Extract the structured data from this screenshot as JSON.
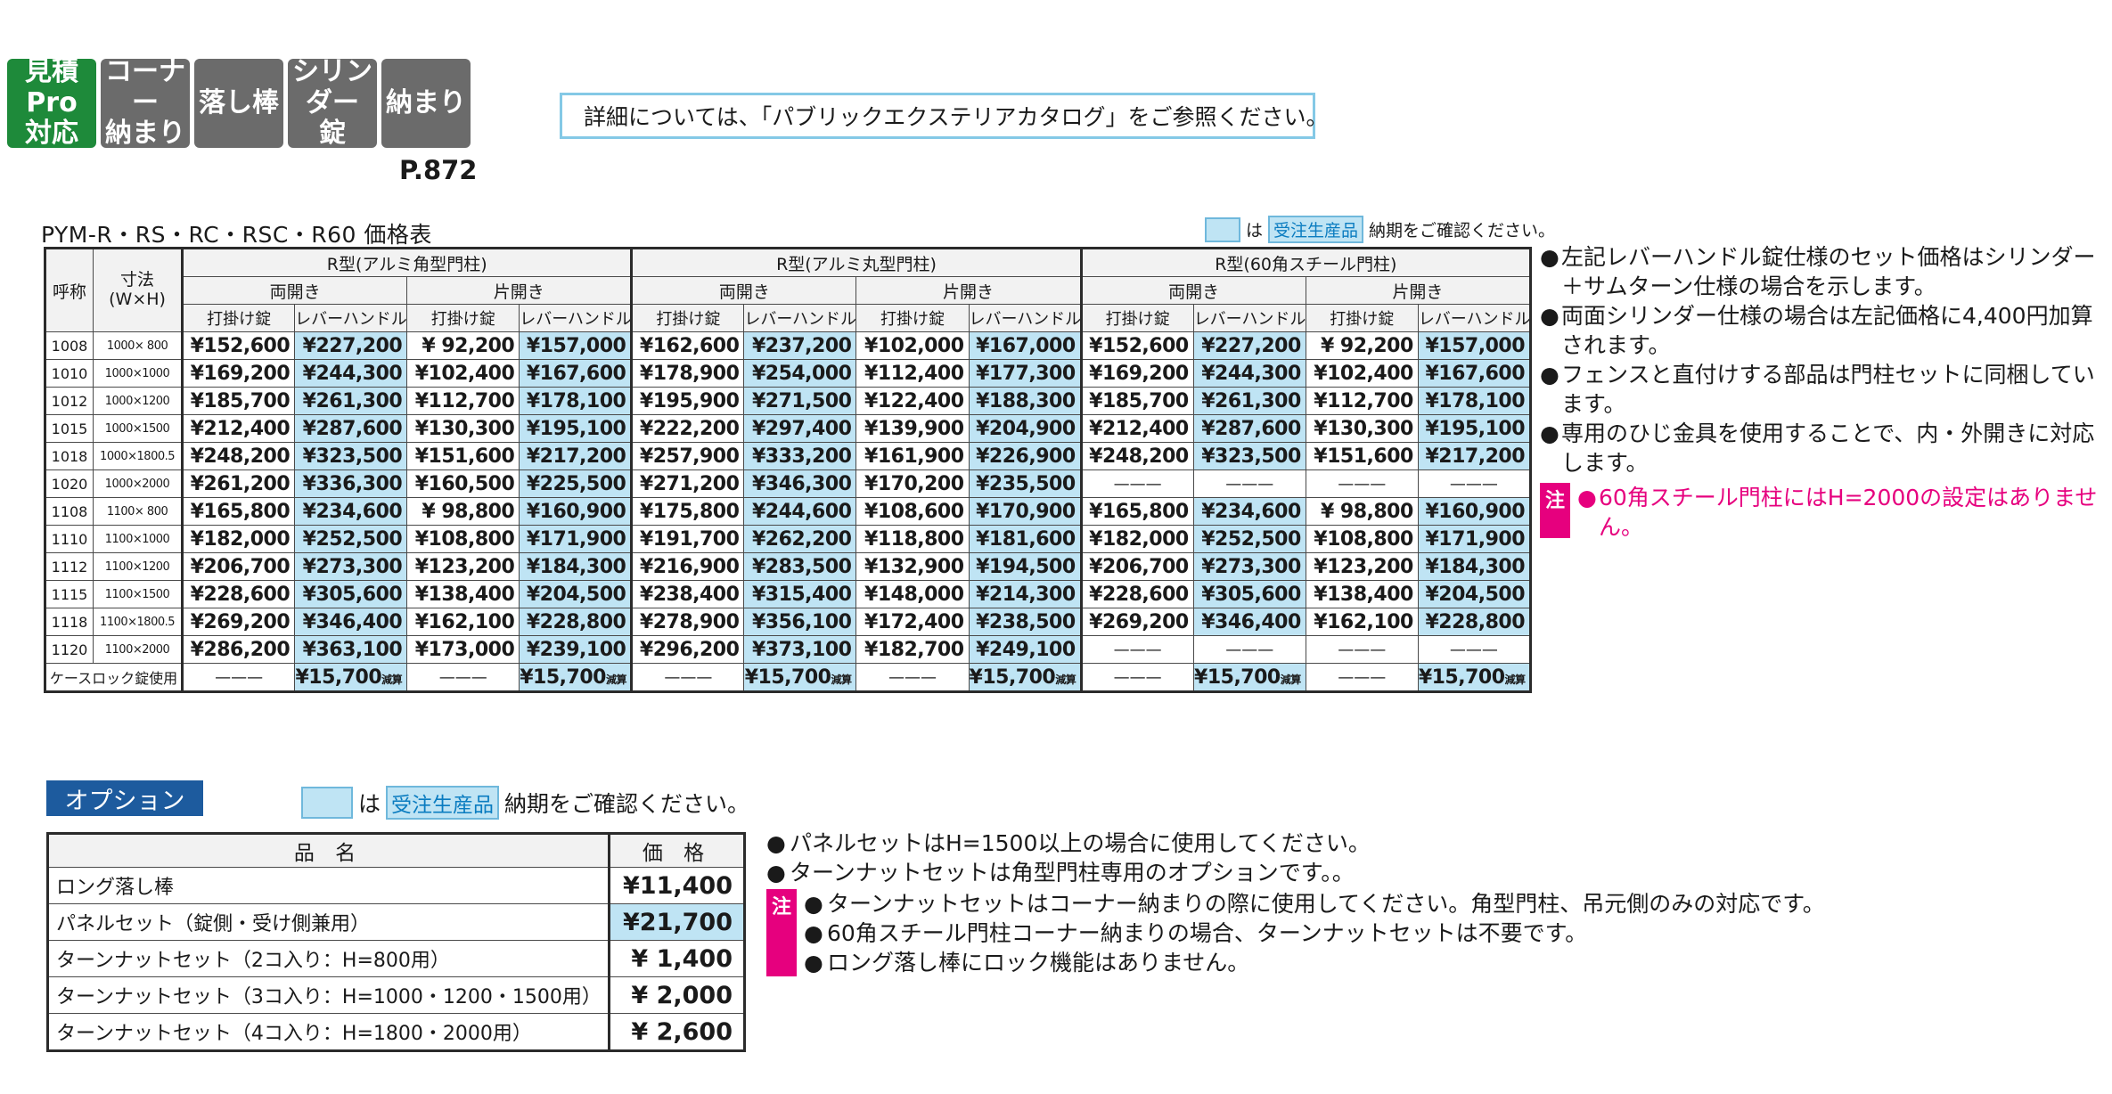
{
  "badges": [
    {
      "label": "見積Pro\n対応",
      "color": "#1e8a3a"
    },
    {
      "label": "コーナー\n納まり",
      "color": "#6b6b6b"
    },
    {
      "label": "落し棒",
      "color": "#6b6b6b"
    },
    {
      "label": "シリンダー\n錠",
      "color": "#6b6b6b"
    },
    {
      "label": "納まり",
      "color": "#6b6b6b"
    }
  ],
  "page_ref": "P.872",
  "catalog_note": "詳細については、「パブリックエクステリアカタログ」をご参照ください。",
  "price_table": {
    "title": "PYM-R・RS・RC・RSC・R60 価格表",
    "legend": {
      "prefix": "は",
      "tag": "受注生産品",
      "suffix": "納期をご確認ください。"
    },
    "header": {
      "code": "呼称",
      "size": "寸法\n(W×H)",
      "groups": [
        "R型(アルミ角型門柱)",
        "R型(アルミ丸型門柱)",
        "R型(60角スチール門柱)"
      ],
      "open_types": [
        "両開き",
        "片開き"
      ],
      "lock_types": [
        "打掛け錠",
        "レバーハンドル錠"
      ]
    },
    "rows": [
      {
        "code": "1008",
        "size": "1000× 800",
        "values": [
          "¥152,600",
          "¥227,200",
          "¥ 92,200",
          "¥157,000",
          "¥162,600",
          "¥237,200",
          "¥102,000",
          "¥167,000",
          "¥152,600",
          "¥227,200",
          "¥ 92,200",
          "¥157,000"
        ]
      },
      {
        "code": "1010",
        "size": "1000×1000",
        "values": [
          "¥169,200",
          "¥244,300",
          "¥102,400",
          "¥167,600",
          "¥178,900",
          "¥254,000",
          "¥112,400",
          "¥177,300",
          "¥169,200",
          "¥244,300",
          "¥102,400",
          "¥167,600"
        ]
      },
      {
        "code": "1012",
        "size": "1000×1200",
        "values": [
          "¥185,700",
          "¥261,300",
          "¥112,700",
          "¥178,100",
          "¥195,900",
          "¥271,500",
          "¥122,400",
          "¥188,300",
          "¥185,700",
          "¥261,300",
          "¥112,700",
          "¥178,100"
        ]
      },
      {
        "code": "1015",
        "size": "1000×1500",
        "values": [
          "¥212,400",
          "¥287,600",
          "¥130,300",
          "¥195,100",
          "¥222,200",
          "¥297,400",
          "¥139,900",
          "¥204,900",
          "¥212,400",
          "¥287,600",
          "¥130,300",
          "¥195,100"
        ]
      },
      {
        "code": "1018",
        "size": "1000×1800.5",
        "values": [
          "¥248,200",
          "¥323,500",
          "¥151,600",
          "¥217,200",
          "¥257,900",
          "¥333,200",
          "¥161,900",
          "¥226,900",
          "¥248,200",
          "¥323,500",
          "¥151,600",
          "¥217,200"
        ]
      },
      {
        "code": "1020",
        "size": "1000×2000",
        "values": [
          "¥261,200",
          "¥336,300",
          "¥160,500",
          "¥225,500",
          "¥271,200",
          "¥346,300",
          "¥170,200",
          "¥235,500",
          "———",
          "———",
          "———",
          "———"
        ]
      },
      {
        "code": "1108",
        "size": "1100× 800",
        "values": [
          "¥165,800",
          "¥234,600",
          "¥ 98,800",
          "¥160,900",
          "¥175,800",
          "¥244,600",
          "¥108,600",
          "¥170,900",
          "¥165,800",
          "¥234,600",
          "¥ 98,800",
          "¥160,900"
        ]
      },
      {
        "code": "1110",
        "size": "1100×1000",
        "values": [
          "¥182,000",
          "¥252,500",
          "¥108,800",
          "¥171,900",
          "¥191,700",
          "¥262,200",
          "¥118,800",
          "¥181,600",
          "¥182,000",
          "¥252,500",
          "¥108,800",
          "¥171,900"
        ]
      },
      {
        "code": "1112",
        "size": "1100×1200",
        "values": [
          "¥206,700",
          "¥273,300",
          "¥123,200",
          "¥184,300",
          "¥216,900",
          "¥283,500",
          "¥132,900",
          "¥194,500",
          "¥206,700",
          "¥273,300",
          "¥123,200",
          "¥184,300"
        ]
      },
      {
        "code": "1115",
        "size": "1100×1500",
        "values": [
          "¥228,600",
          "¥305,600",
          "¥138,400",
          "¥204,500",
          "¥238,400",
          "¥315,400",
          "¥148,000",
          "¥214,300",
          "¥228,600",
          "¥305,600",
          "¥138,400",
          "¥204,500"
        ]
      },
      {
        "code": "1118",
        "size": "1100×1800.5",
        "values": [
          "¥269,200",
          "¥346,400",
          "¥162,100",
          "¥228,800",
          "¥278,900",
          "¥356,100",
          "¥172,400",
          "¥238,500",
          "¥269,200",
          "¥346,400",
          "¥162,100",
          "¥228,800"
        ]
      },
      {
        "code": "1120",
        "size": "1100×2000",
        "values": [
          "¥286,200",
          "¥363,100",
          "¥173,000",
          "¥239,100",
          "¥296,200",
          "¥373,100",
          "¥182,700",
          "¥249,100",
          "———",
          "———",
          "———",
          "———"
        ]
      }
    ],
    "case_lock": {
      "label": "ケースロック錠使用",
      "dash": "———",
      "amount": "¥15,700",
      "suffix": "減算"
    }
  },
  "right_notes": [
    "左記レバーハンドル錠仕様のセット価格はシリンダー＋サムターン仕様の場合を示します。",
    "両面シリンダー仕様の場合は左記価格に4,400円加算されます。",
    "フェンスと直付けする部品は門柱セットに同梱しています。",
    "専用のひじ金具を使用することで、内・外開きに対応します。"
  ],
  "right_caution": {
    "label": "注",
    "text": "60角スチール門柱にはH=2000の設定はありません。"
  },
  "options": {
    "title": "オプション",
    "legend": {
      "prefix": "は",
      "tag": "受注生産品",
      "suffix": "納期をご確認ください。"
    },
    "header": {
      "name": "品 名",
      "price": "価 格"
    },
    "rows": [
      {
        "name": "ロング落し棒",
        "price": "¥11,400"
      },
      {
        "name": "パネルセット（錠側・受け側兼用）",
        "price": "¥21,700"
      },
      {
        "name": "ターンナットセット（2コ入り：H=800用）",
        "price": "¥ 1,400"
      },
      {
        "name": "ターンナットセット（3コ入り：H=1000・1200・1500用）",
        "price": "¥ 2,000"
      },
      {
        "name": "ターンナットセット（4コ入り：H=1800・2000用）",
        "price": "¥ 2,600"
      }
    ]
  },
  "bottom_notes": [
    "パネルセットはH=1500以上の場合に使用してください。",
    "ターンナットセットは角型門柱専用のオプションです。。"
  ],
  "bottom_caution": {
    "label": "注",
    "items": [
      "ターンナットセットはコーナー納まりの際に使用してください。角型門柱、吊元側のみの対応です。",
      "60角スチール門柱コーナー納まりの場合、ターンナットセットは不要です。",
      "ロング落し棒にロック機能はありません。"
    ]
  },
  "bullet": "●",
  "colors": {
    "made_to_order": "#bfe4f4",
    "badge_green": "#1e8a3a",
    "badge_gray": "#6b6b6b",
    "caution": "#e6007e",
    "option_title": "#1d5b9e"
  }
}
